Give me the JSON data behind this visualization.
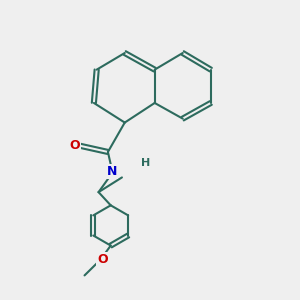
{
  "background_color": "#efefef",
  "bond_color": "#2d6b5e",
  "atom_colors": {
    "O": "#cc0000",
    "N": "#0000cc",
    "C": "#2d6b5e",
    "H": "#2d6b5e"
  },
  "figsize": [
    3.0,
    3.0
  ],
  "dpi": 100,
  "xlim": [
    0,
    10
  ],
  "ylim": [
    0,
    13
  ]
}
